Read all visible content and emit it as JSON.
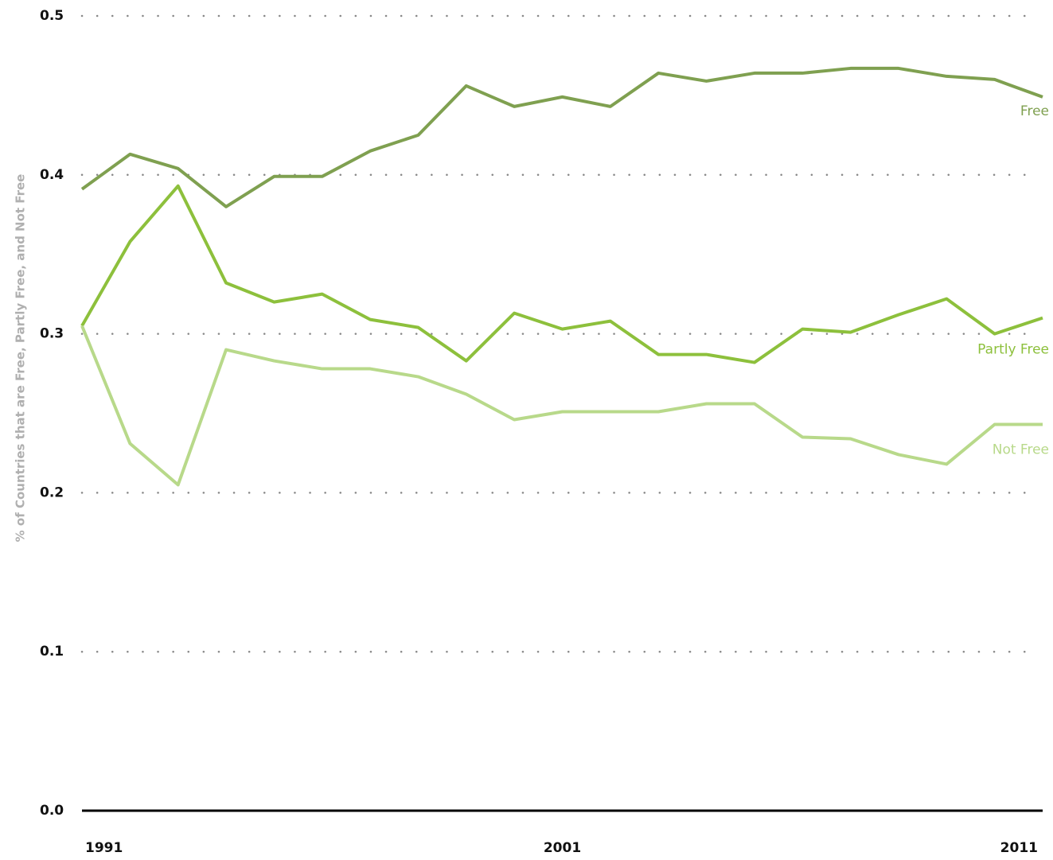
{
  "chart_data": {
    "type": "line",
    "y_label": "% of Countries that are Free, Partly Free, and Not Free",
    "x": [
      1991,
      1992,
      1993,
      1994,
      1995,
      1996,
      1997,
      1998,
      1999,
      2000,
      2001,
      2002,
      2003,
      2004,
      2005,
      2006,
      2007,
      2008,
      2009,
      2010,
      2011
    ],
    "xlim": [
      1991,
      2011
    ],
    "xticks": [
      1991,
      2001,
      2011
    ],
    "ylim": [
      0,
      0.5
    ],
    "yticks": [
      {
        "value": 0,
        "label": "0.0"
      },
      0.1,
      0.2,
      0.3,
      0.4,
      0.5
    ],
    "grid": true,
    "series": [
      {
        "name": "Free",
        "color": "#7fa050",
        "values": [
          0.391,
          0.413,
          0.404,
          0.38,
          0.399,
          0.399,
          0.415,
          0.425,
          0.456,
          0.443,
          0.449,
          0.443,
          0.464,
          0.459,
          0.464,
          0.464,
          0.467,
          0.467,
          0.462,
          0.46,
          0.449
        ]
      },
      {
        "name": "Partly Free",
        "color": "#8dc03c",
        "values": [
          0.305,
          0.358,
          0.393,
          0.332,
          0.32,
          0.325,
          0.309,
          0.304,
          0.283,
          0.313,
          0.303,
          0.308,
          0.287,
          0.287,
          0.282,
          0.303,
          0.301,
          0.312,
          0.322,
          0.3,
          0.31
        ]
      },
      {
        "name": "Not Free",
        "color": "#b8d98a",
        "values": [
          0.305,
          0.231,
          0.205,
          0.29,
          0.283,
          0.278,
          0.278,
          0.273,
          0.262,
          0.246,
          0.251,
          0.251,
          0.251,
          0.256,
          0.256,
          0.235,
          0.234,
          0.224,
          0.218,
          0.243,
          0.243
        ]
      }
    ]
  }
}
